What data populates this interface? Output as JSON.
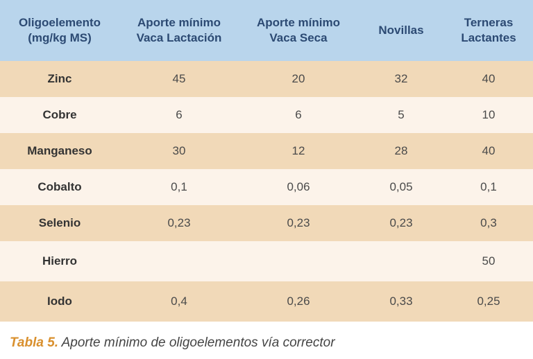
{
  "table": {
    "headers": [
      "Oligoelemento\n(mg/kg MS)",
      "Aporte mínimo\nVaca Lactación",
      "Aporte mínimo\nVaca Seca",
      "Novillas",
      "Terneras\nLactantes"
    ],
    "rows": [
      {
        "name": "Zinc",
        "values": [
          "45",
          "20",
          "32",
          "40"
        ]
      },
      {
        "name": "Cobre",
        "values": [
          "6",
          "6",
          "5",
          "10"
        ]
      },
      {
        "name": "Manganeso",
        "values": [
          "30",
          "12",
          "28",
          "40"
        ]
      },
      {
        "name": "Cobalto",
        "values": [
          "0,1",
          "0,06",
          "0,05",
          "0,1"
        ]
      },
      {
        "name": "Selenio",
        "values": [
          "0,23",
          "0,23",
          "0,23",
          "0,3"
        ]
      },
      {
        "name": "Hierro",
        "values": [
          "",
          "",
          "",
          "50"
        ]
      },
      {
        "name": "Iodo",
        "values": [
          "0,4",
          "0,26",
          "0,33",
          "0,25"
        ]
      }
    ]
  },
  "caption": {
    "label": "Tabla 5.",
    "text": " Aporte mínimo de oligoelementos vía corrector"
  },
  "colors": {
    "header_bg": "#b9d5ec",
    "header_text": "#2c4a73",
    "row_dark": "#f1d9b8",
    "row_light": "#fcf3ea",
    "caption_label": "#d9902e"
  }
}
